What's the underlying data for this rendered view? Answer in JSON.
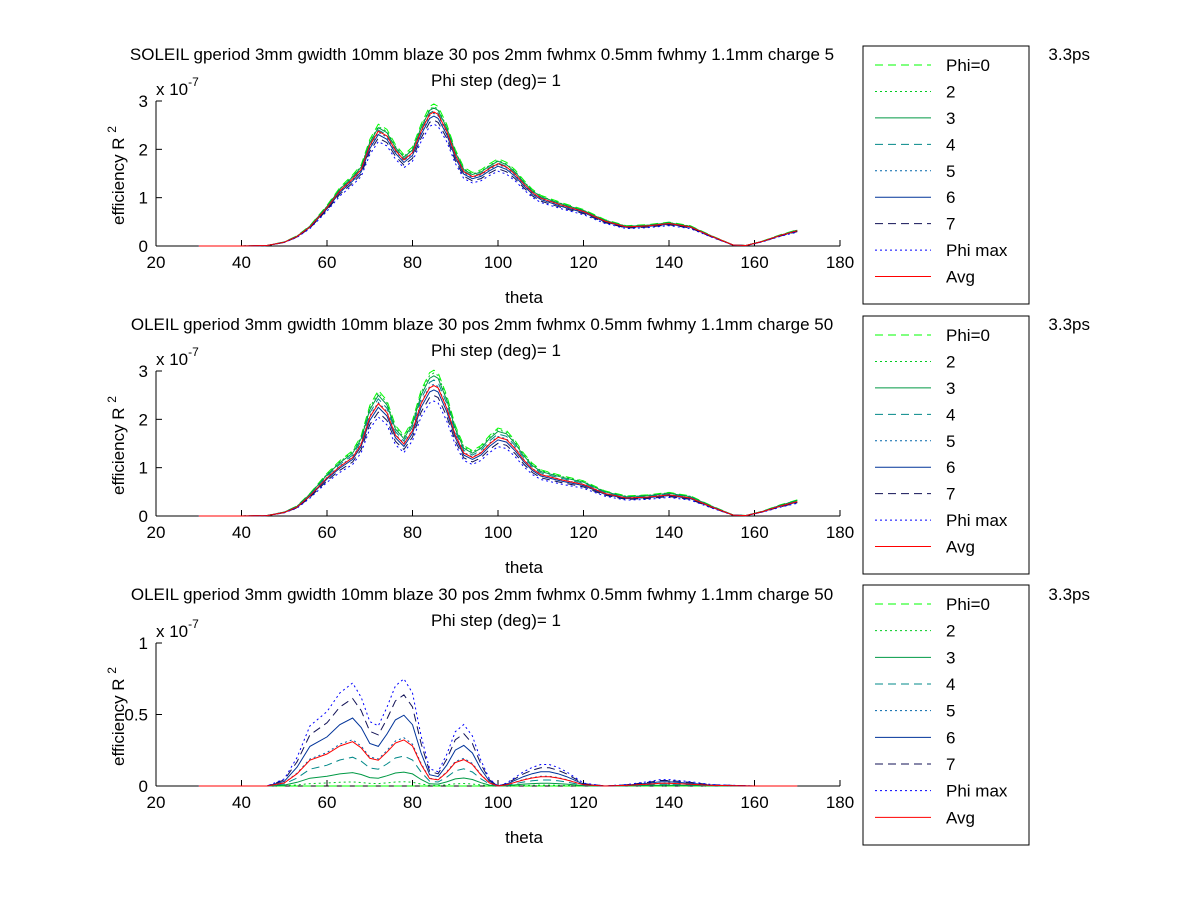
{
  "chart_data": [
    {
      "type": "line",
      "title": "SOLEIL gperiod 3mm gwidth 10mm blaze 30 pos 2mm fwhmx 0.5mm fwhmy 1.1mm charge 5",
      "title_right": "3.3ps",
      "subtitle": "Phi step (deg)= 1",
      "xlabel": "theta",
      "ylabel": "efficiency R",
      "ylabel_sup": "2",
      "exponent_base": "x 10",
      "exponent_power": "-7",
      "xlim": [
        20,
        180
      ],
      "ylim": [
        0,
        3
      ],
      "xticks": [
        20,
        40,
        60,
        80,
        100,
        120,
        140,
        160,
        180
      ],
      "yticks": [
        0,
        1,
        2,
        3
      ],
      "legend": {
        "placement": "right",
        "entries": [
          "Phi=0",
          "2",
          "3",
          "4",
          "5",
          "6",
          "7",
          "Phi max",
          "Avg"
        ]
      },
      "base_curve": {
        "x": [
          30,
          40,
          46,
          50,
          53,
          56,
          60,
          63,
          66,
          68,
          70,
          72,
          74,
          76,
          78,
          80,
          82,
          84,
          85,
          86,
          88,
          90,
          92,
          94,
          96,
          98,
          100,
          102,
          104,
          106,
          108,
          110,
          115,
          120,
          125,
          130,
          135,
          140,
          145,
          150,
          155,
          158,
          162,
          166,
          170
        ],
        "values": [
          0,
          0,
          0.01,
          0.08,
          0.2,
          0.4,
          0.8,
          1.15,
          1.4,
          1.6,
          2.1,
          2.4,
          2.3,
          2.0,
          1.8,
          1.95,
          2.4,
          2.75,
          2.8,
          2.75,
          2.4,
          1.9,
          1.55,
          1.45,
          1.5,
          1.62,
          1.72,
          1.65,
          1.5,
          1.3,
          1.12,
          1.0,
          0.85,
          0.72,
          0.52,
          0.4,
          0.42,
          0.47,
          0.4,
          0.2,
          0.02,
          0.01,
          0.1,
          0.22,
          0.32
        ]
      },
      "series": [
        {
          "name": "Phi=0",
          "scale": 1.05,
          "color": "#00ff00",
          "dash": "8,5"
        },
        {
          "name": "2",
          "scale": 1.03,
          "color": "#00cc22",
          "dash": "2,3"
        },
        {
          "name": "3",
          "scale": 1.02,
          "color": "#009944",
          "dash": ""
        },
        {
          "name": "4",
          "scale": 1.0,
          "color": "#008888",
          "dash": "8,5"
        },
        {
          "name": "5",
          "scale": 0.98,
          "color": "#0066aa",
          "dash": "2,3"
        },
        {
          "name": "6",
          "scale": 0.96,
          "color": "#003399",
          "dash": ""
        },
        {
          "name": "7",
          "scale": 0.93,
          "color": "#111155",
          "dash": "8,5"
        },
        {
          "name": "Phi max",
          "scale": 0.9,
          "color": "#0000ff",
          "dash": "2,3"
        },
        {
          "name": "Avg",
          "scale": 0.99,
          "color": "#ff0000",
          "dash": ""
        }
      ]
    },
    {
      "type": "line",
      "title": "OLEIL gperiod 3mm gwidth 10mm blaze 30 pos 2mm fwhmx 0.5mm fwhmy 1.1mm charge 50",
      "title_right": "3.3ps",
      "subtitle": "Phi step (deg)= 1",
      "xlabel": "theta",
      "ylabel": "efficiency R",
      "ylabel_sup": "2",
      "exponent_base": "x 10",
      "exponent_power": "-7",
      "xlim": [
        20,
        180
      ],
      "ylim": [
        0,
        3
      ],
      "xticks": [
        20,
        40,
        60,
        80,
        100,
        120,
        140,
        160,
        180
      ],
      "yticks": [
        0,
        1,
        2,
        3
      ],
      "legend": {
        "placement": "right",
        "entries": [
          "Phi=0",
          "2",
          "3",
          "4",
          "5",
          "6",
          "7",
          "Phi max",
          "Avg"
        ]
      },
      "base_curve": {
        "x": [
          30,
          40,
          46,
          50,
          53,
          56,
          60,
          63,
          66,
          68,
          70,
          72,
          74,
          76,
          78,
          80,
          82,
          84,
          85,
          86,
          88,
          90,
          92,
          94,
          96,
          98,
          100,
          102,
          104,
          106,
          108,
          110,
          115,
          120,
          125,
          130,
          135,
          140,
          145,
          150,
          155,
          158,
          162,
          166,
          170
        ],
        "values": [
          0,
          0,
          0.01,
          0.08,
          0.2,
          0.45,
          0.85,
          1.1,
          1.3,
          1.6,
          2.2,
          2.5,
          2.3,
          1.8,
          1.6,
          1.9,
          2.5,
          2.85,
          2.9,
          2.85,
          2.4,
          1.8,
          1.4,
          1.3,
          1.4,
          1.6,
          1.75,
          1.7,
          1.5,
          1.25,
          1.05,
          0.92,
          0.8,
          0.7,
          0.5,
          0.4,
          0.42,
          0.47,
          0.4,
          0.2,
          0.02,
          0.01,
          0.1,
          0.22,
          0.32
        ]
      },
      "series": [
        {
          "name": "Phi=0",
          "scale": 1.04,
          "color": "#00ff00",
          "dash": "8,5"
        },
        {
          "name": "2",
          "scale": 1.02,
          "color": "#00cc22",
          "dash": "2,3"
        },
        {
          "name": "3",
          "scale": 1.0,
          "color": "#009944",
          "dash": ""
        },
        {
          "name": "4",
          "scale": 0.97,
          "color": "#008888",
          "dash": "8,5"
        },
        {
          "name": "5",
          "scale": 0.94,
          "color": "#0066aa",
          "dash": "2,3"
        },
        {
          "name": "6",
          "scale": 0.9,
          "color": "#003399",
          "dash": ""
        },
        {
          "name": "7",
          "scale": 0.86,
          "color": "#111155",
          "dash": "8,5"
        },
        {
          "name": "Phi max",
          "scale": 0.82,
          "color": "#0000ff",
          "dash": "2,3"
        },
        {
          "name": "Avg",
          "scale": 0.93,
          "color": "#ff0000",
          "dash": ""
        }
      ]
    },
    {
      "type": "line",
      "title": "OLEIL gperiod 3mm gwidth 10mm blaze 30 pos 2mm fwhmx 0.5mm fwhmy 1.1mm charge 50",
      "title_right": "3.3ps",
      "subtitle": "Phi step (deg)= 1",
      "xlabel": "theta",
      "ylabel": "efficiency R",
      "ylabel_sup": "2",
      "exponent_base": "x 10",
      "exponent_power": "-7",
      "xlim": [
        20,
        180
      ],
      "ylim": [
        0,
        1
      ],
      "xticks": [
        20,
        40,
        60,
        80,
        100,
        120,
        140,
        160,
        180
      ],
      "yticks": [
        0,
        0.5,
        1
      ],
      "legend": {
        "placement": "right",
        "entries": [
          "Phi=0",
          "2",
          "3",
          "4",
          "5",
          "6",
          "7",
          "Phi max",
          "Avg"
        ]
      },
      "base_curve": {
        "x": [
          30,
          46,
          50,
          53,
          56,
          60,
          63,
          66,
          68,
          70,
          72,
          74,
          76,
          78,
          80,
          82,
          84,
          86,
          88,
          90,
          92,
          94,
          96,
          98,
          100,
          102,
          104,
          106,
          108,
          110,
          112,
          114,
          116,
          118,
          120,
          125,
          130,
          135,
          138,
          140,
          145,
          150,
          160,
          170
        ],
        "values": [
          0,
          0,
          0.05,
          0.2,
          0.42,
          0.52,
          0.65,
          0.72,
          0.62,
          0.45,
          0.42,
          0.55,
          0.7,
          0.75,
          0.65,
          0.35,
          0.12,
          0.1,
          0.22,
          0.38,
          0.43,
          0.35,
          0.18,
          0.05,
          0.0,
          0.02,
          0.06,
          0.1,
          0.13,
          0.15,
          0.15,
          0.13,
          0.1,
          0.06,
          0.02,
          0.0,
          0.01,
          0.03,
          0.045,
          0.045,
          0.03,
          0.01,
          0.0,
          0.0
        ]
      },
      "series": [
        {
          "name": "Phi=0",
          "scale": 0.0,
          "color": "#00ff00",
          "dash": "8,5"
        },
        {
          "name": "2",
          "scale": 0.04,
          "color": "#00cc22",
          "dash": "2,3"
        },
        {
          "name": "3",
          "scale": 0.13,
          "color": "#009944",
          "dash": ""
        },
        {
          "name": "4",
          "scale": 0.28,
          "color": "#008888",
          "dash": "8,5"
        },
        {
          "name": "5",
          "scale": 0.45,
          "color": "#0066aa",
          "dash": "2,3"
        },
        {
          "name": "6",
          "scale": 0.66,
          "color": "#003399",
          "dash": ""
        },
        {
          "name": "7",
          "scale": 0.85,
          "color": "#111155",
          "dash": "8,5"
        },
        {
          "name": "Phi max",
          "scale": 1.0,
          "color": "#0000ff",
          "dash": "2,3"
        },
        {
          "name": "Avg",
          "scale": 0.43,
          "color": "#ff0000",
          "dash": ""
        }
      ]
    }
  ]
}
